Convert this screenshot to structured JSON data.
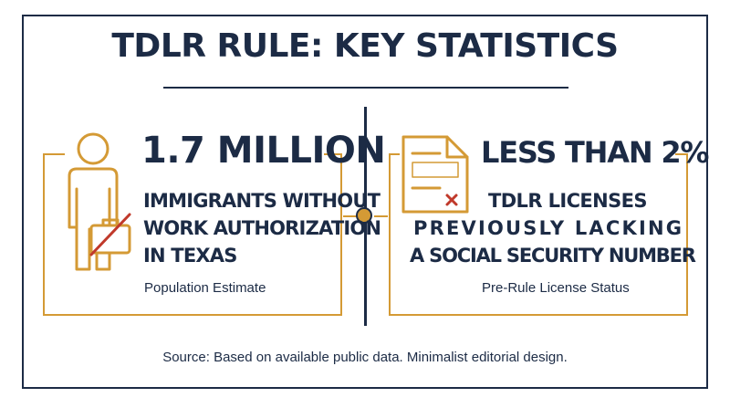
{
  "title": "TDLR RULE: KEY STATISTICS",
  "left_stat": {
    "value": "1.7 MILLION",
    "description_lines": [
      "IMMIGRANTS WITHOUT",
      "WORK AUTHORIZATION",
      "IN TEXAS"
    ],
    "note": "Population Estimate",
    "icon": "person-with-crossed-briefcase-icon"
  },
  "right_stat": {
    "value": "LESS THAN 2%",
    "description_lines": [
      "TDLR LICENSES",
      "PREVIOUSLY LACKING",
      "A SOCIAL SECURITY NUMBER"
    ],
    "note": "Pre-Rule License Status",
    "icon": "document-with-x-icon"
  },
  "source": "Source: Based on available public data. Minimalist editorial design.",
  "colors": {
    "navy": "#1c2b45",
    "gold": "#d49a35",
    "red_mark": "#c0392b",
    "background": "#ffffff"
  }
}
